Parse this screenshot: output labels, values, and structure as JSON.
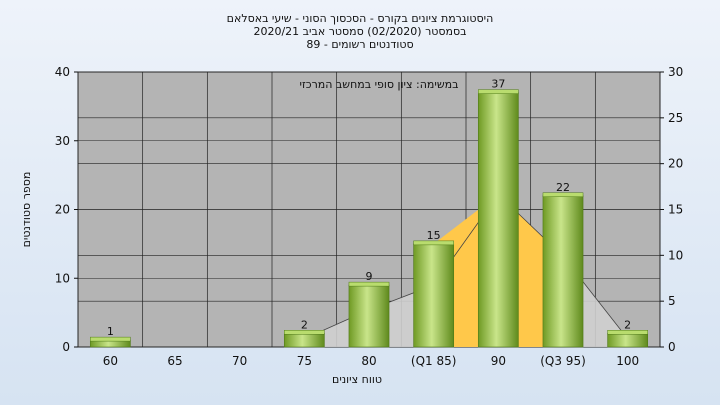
{
  "title_lines": [
    "היסטוגרמת ציונים בקורס - הסכסוך הסוני - שיעי באסלאם",
    "בסמסטר  (02/2020)  סמסטר אביב 2020/21",
    "סטודנטים רשומים - 89"
  ],
  "chart_data": {
    "type": "bar",
    "title": "היסטוגרמת ציונים בקורס - הסכסוך הסוני - שיעי באסלאם",
    "annotation": "במשימה: ציון סופי במחשב המרכזי",
    "xlabel": "טווח ציונים",
    "ylabel": "מספר סטודנטים",
    "categories": [
      "60",
      "65",
      "70",
      "75",
      "80",
      "(Q1 85)",
      "90",
      "(Q3 95)",
      "100"
    ],
    "values": [
      1,
      0,
      0,
      2,
      9,
      15,
      37,
      22,
      2
    ],
    "data_labels": [
      "1",
      "",
      "",
      "2",
      "9",
      "15",
      "37",
      "22",
      "2"
    ],
    "ylim_left": [
      0,
      40
    ],
    "yticks_left": [
      0,
      10,
      20,
      30,
      40
    ],
    "ylim_right": [
      0,
      30
    ],
    "yticks_right": [
      0,
      5,
      10,
      15,
      20,
      25,
      30
    ],
    "grid": true,
    "bar_color": "#8fbf3a",
    "area_color": "#ffc84a",
    "plot_bg": "#b4b4b4"
  }
}
